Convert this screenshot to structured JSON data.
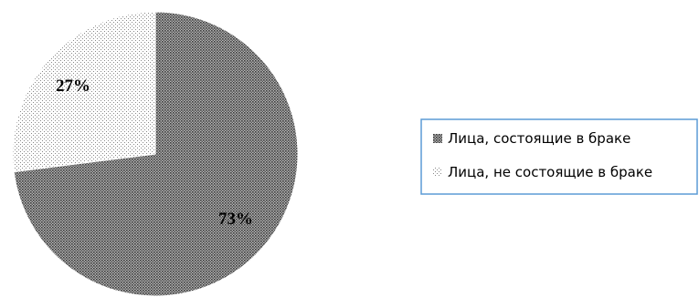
{
  "chart_data": {
    "type": "pie",
    "title": "",
    "slices": [
      {
        "label": "Лица, состоящие в браке",
        "value": 73,
        "value_label": "73%",
        "pattern": "dense-dots",
        "color": "#808080"
      },
      {
        "label": "Лица, не состоящие в браке",
        "value": 27,
        "value_label": "27%",
        "pattern": "sparse-dots",
        "color": "#ffffff"
      }
    ],
    "start": "12 o'clock",
    "direction": "clockwise",
    "legend_position": "right",
    "legend_border_color": "#5b9bd5"
  }
}
